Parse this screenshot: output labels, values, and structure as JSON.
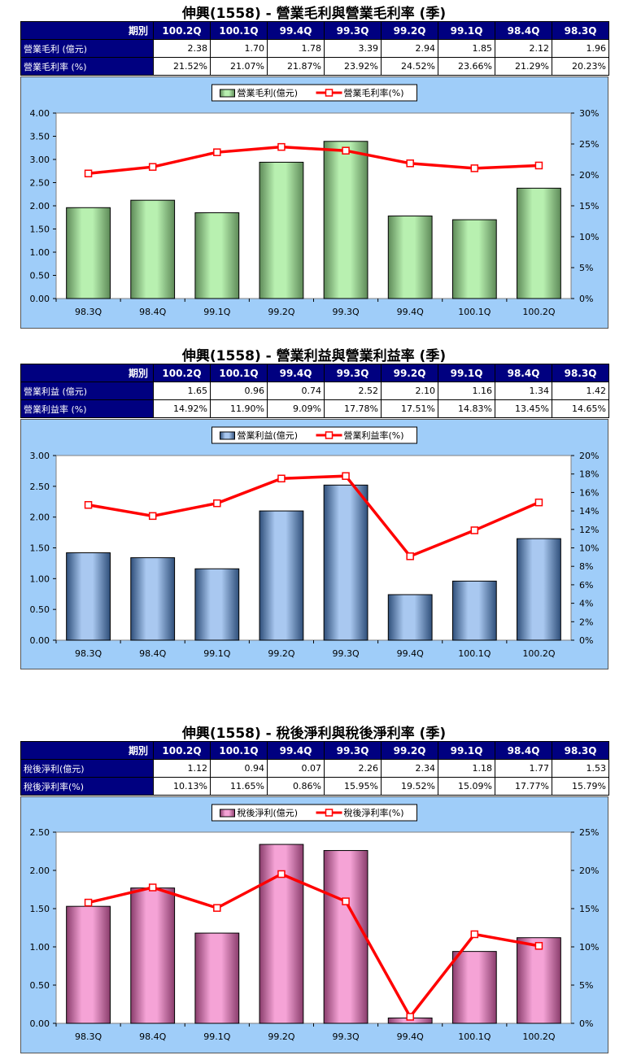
{
  "sections": [
    {
      "title": "伸興(1558) - 營業毛利與營業毛利率 (季)",
      "table": {
        "corner": "期別",
        "periods": [
          "100.2Q",
          "100.1Q",
          "99.4Q",
          "99.3Q",
          "99.2Q",
          "99.1Q",
          "98.4Q",
          "98.3Q"
        ],
        "rows": [
          {
            "label": "營業毛利 (億元)",
            "values": [
              "2.38",
              "1.70",
              "1.78",
              "3.39",
              "2.94",
              "1.85",
              "2.12",
              "1.96"
            ]
          },
          {
            "label": "營業毛利率 (%)",
            "values": [
              "21.52%",
              "21.07%",
              "21.87%",
              "23.92%",
              "24.52%",
              "23.66%",
              "21.29%",
              "20.23%"
            ]
          }
        ]
      },
      "chart_data": {
        "type": "bar+line",
        "categories": [
          "98.3Q",
          "98.4Q",
          "99.1Q",
          "99.2Q",
          "99.3Q",
          "99.4Q",
          "100.1Q",
          "100.2Q"
        ],
        "series": [
          {
            "name": "營業毛利(億元)",
            "type": "bar",
            "axis": "left",
            "values": [
              1.96,
              2.12,
              1.85,
              2.94,
              3.39,
              1.78,
              1.7,
              2.38
            ]
          },
          {
            "name": "營業毛利率(%)",
            "type": "line",
            "axis": "right",
            "values": [
              20.23,
              21.29,
              23.66,
              24.52,
              23.92,
              21.87,
              21.07,
              21.52
            ]
          }
        ],
        "y_left": {
          "min": 0,
          "max": 4.0,
          "step": 0.5,
          "ticks": [
            "0.00",
            "0.50",
            "1.00",
            "1.50",
            "2.00",
            "2.50",
            "3.00",
            "3.50",
            "4.00"
          ]
        },
        "y_right": {
          "min": 0,
          "max": 30,
          "step": 5,
          "ticks": [
            "0%",
            "5%",
            "10%",
            "15%",
            "20%",
            "25%",
            "30%"
          ]
        },
        "bar_color": "#b8f0b0",
        "bar_dark": "#5e8a58",
        "line_color": "#ff0000",
        "legend_position": "top-center"
      }
    },
    {
      "title": "伸興(1558) - 營業利益與營業利益率 (季)",
      "table": {
        "corner": "期別",
        "periods": [
          "100.2Q",
          "100.1Q",
          "99.4Q",
          "99.3Q",
          "99.2Q",
          "99.1Q",
          "98.4Q",
          "98.3Q"
        ],
        "rows": [
          {
            "label": "營業利益 (億元)",
            "values": [
              "1.65",
              "0.96",
              "0.74",
              "2.52",
              "2.10",
              "1.16",
              "1.34",
              "1.42"
            ]
          },
          {
            "label": "營業利益率 (%)",
            "values": [
              "14.92%",
              "11.90%",
              "9.09%",
              "17.78%",
              "17.51%",
              "14.83%",
              "13.45%",
              "14.65%"
            ]
          }
        ]
      },
      "chart_data": {
        "type": "bar+line",
        "categories": [
          "98.3Q",
          "98.4Q",
          "99.1Q",
          "99.2Q",
          "99.3Q",
          "99.4Q",
          "100.1Q",
          "100.2Q"
        ],
        "series": [
          {
            "name": "營業利益(億元)",
            "type": "bar",
            "axis": "left",
            "values": [
              1.42,
              1.34,
              1.16,
              2.1,
              2.52,
              0.74,
              0.96,
              1.65
            ]
          },
          {
            "name": "營業利益率(%)",
            "type": "line",
            "axis": "right",
            "values": [
              14.65,
              13.45,
              14.83,
              17.51,
              17.78,
              9.09,
              11.9,
              14.92
            ]
          }
        ],
        "y_left": {
          "min": 0,
          "max": 3.0,
          "step": 0.5,
          "ticks": [
            "0.00",
            "0.50",
            "1.00",
            "1.50",
            "2.00",
            "2.50",
            "3.00"
          ]
        },
        "y_right": {
          "min": 0,
          "max": 20,
          "step": 2,
          "ticks": [
            "0%",
            "2%",
            "4%",
            "6%",
            "8%",
            "10%",
            "12%",
            "14%",
            "16%",
            "18%",
            "20%"
          ]
        },
        "bar_color": "#a9c8f0",
        "bar_dark": "#2f4f7a",
        "line_color": "#ff0000",
        "legend_position": "top-center"
      }
    },
    {
      "title": "伸興(1558) - 稅後淨利與稅後淨利率 (季)",
      "table": {
        "corner": "期別",
        "periods": [
          "100.2Q",
          "100.1Q",
          "99.4Q",
          "99.3Q",
          "99.2Q",
          "99.1Q",
          "98.4Q",
          "98.3Q"
        ],
        "rows": [
          {
            "label": "稅後淨利(億元)",
            "values": [
              "1.12",
              "0.94",
              "0.07",
              "2.26",
              "2.34",
              "1.18",
              "1.77",
              "1.53"
            ]
          },
          {
            "label": "稅後淨利率(%)",
            "values": [
              "10.13%",
              "11.65%",
              "0.86%",
              "15.95%",
              "19.52%",
              "15.09%",
              "17.77%",
              "15.79%"
            ]
          }
        ]
      },
      "chart_data": {
        "type": "bar+line",
        "categories": [
          "98.3Q",
          "98.4Q",
          "99.1Q",
          "99.2Q",
          "99.3Q",
          "99.4Q",
          "100.1Q",
          "100.2Q"
        ],
        "series": [
          {
            "name": "稅後淨利(億元)",
            "type": "bar",
            "axis": "left",
            "values": [
              1.53,
              1.77,
              1.18,
              2.34,
              2.26,
              0.07,
              0.94,
              1.12
            ]
          },
          {
            "name": "稅後淨利率(%)",
            "type": "line",
            "axis": "right",
            "values": [
              15.79,
              17.77,
              15.09,
              19.52,
              15.95,
              0.86,
              11.65,
              10.13
            ]
          }
        ],
        "y_left": {
          "min": 0,
          "max": 2.5,
          "step": 0.5,
          "ticks": [
            "0.00",
            "0.50",
            "1.00",
            "1.50",
            "2.00",
            "2.50"
          ]
        },
        "y_right": {
          "min": 0,
          "max": 25,
          "step": 5,
          "ticks": [
            "0%",
            "5%",
            "10%",
            "15%",
            "20%",
            "25%"
          ]
        },
        "bar_color": "#f5a3d6",
        "bar_dark": "#8a3d6c",
        "line_color": "#ff0000",
        "legend_position": "top-center"
      }
    }
  ]
}
